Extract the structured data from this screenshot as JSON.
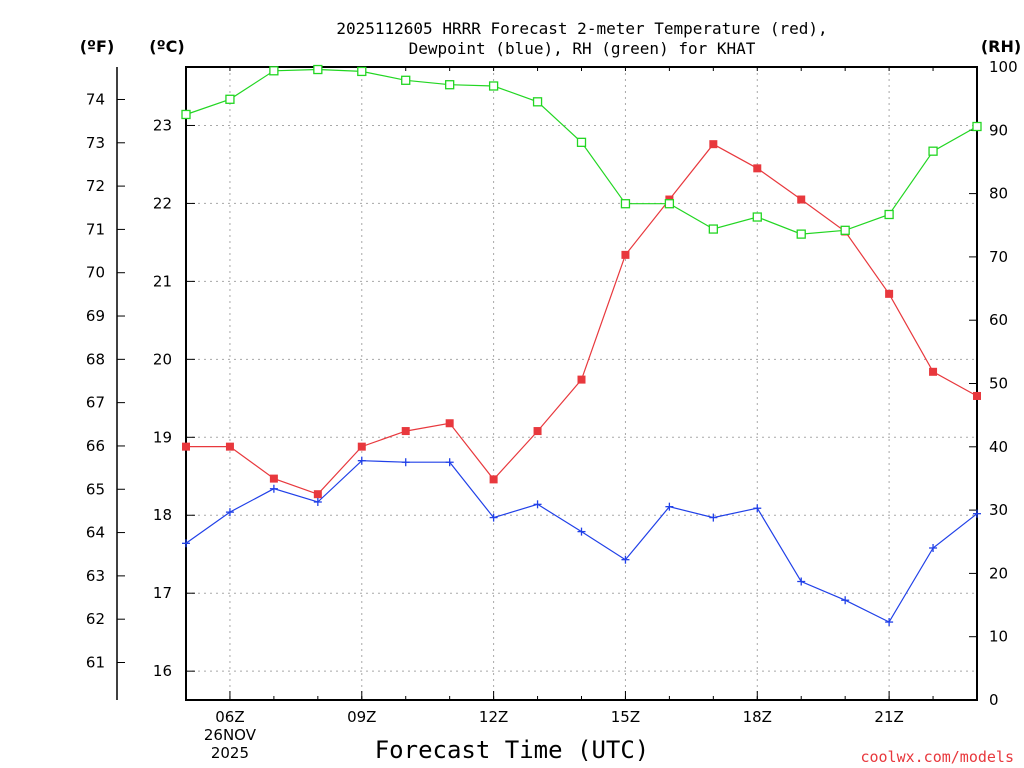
{
  "chart_data": {
    "type": "line",
    "title_lines": [
      "2025112605 HRRR Forecast 2-meter Temperature (red),",
      "Dewpoint (blue), RH (green) for KHAT"
    ],
    "xlabel": "Forecast Time (UTC)",
    "credit": "coolwx.com/models",
    "units": {
      "f": "(ºF)",
      "c": "(ºC)",
      "rh": "(RH)"
    },
    "x_hours": [
      5,
      6,
      7,
      8,
      9,
      10,
      11,
      12,
      13,
      14,
      15,
      16,
      17,
      18,
      19,
      20,
      21,
      22,
      23
    ],
    "xlim": [
      5,
      23
    ],
    "x_ticks": [
      {
        "hour": 6,
        "lines": [
          "06Z",
          "26NOV",
          "2025"
        ]
      },
      {
        "hour": 9,
        "lines": [
          "09Z"
        ]
      },
      {
        "hour": 12,
        "lines": [
          "12Z"
        ]
      },
      {
        "hour": 15,
        "lines": [
          "15Z"
        ]
      },
      {
        "hour": 18,
        "lines": [
          "18Z"
        ]
      },
      {
        "hour": 21,
        "lines": [
          "21Z"
        ]
      }
    ],
    "celsius_axis": {
      "ylim": [
        15.63,
        23.75
      ],
      "ticks": [
        "16",
        "17",
        "18",
        "19",
        "20",
        "21",
        "22",
        "23"
      ]
    },
    "fahrenheit_ticks": [
      "61",
      "62",
      "63",
      "64",
      "65",
      "66",
      "67",
      "68",
      "69",
      "70",
      "71",
      "72",
      "73",
      "74"
    ],
    "rh_axis": {
      "ylim": [
        0,
        100
      ],
      "ticks": [
        "0",
        "10",
        "20",
        "30",
        "40",
        "50",
        "60",
        "70",
        "80",
        "90",
        "100"
      ]
    },
    "series": [
      {
        "name": "2-meter Temperature",
        "axis": "celsius",
        "color": "#e8383d",
        "marker": "filled-square",
        "values": [
          18.88,
          18.88,
          18.47,
          18.27,
          18.88,
          19.08,
          19.18,
          18.46,
          19.08,
          19.74,
          21.34,
          22.05,
          22.76,
          22.45,
          22.05,
          21.64,
          20.84,
          19.84,
          19.53
        ]
      },
      {
        "name": "Dewpoint",
        "axis": "celsius",
        "color": "#2040e8",
        "marker": "plus",
        "values": [
          17.64,
          18.04,
          18.34,
          18.17,
          18.7,
          18.68,
          18.68,
          17.97,
          18.14,
          17.79,
          17.43,
          18.11,
          17.97,
          18.09,
          17.15,
          16.91,
          16.63,
          17.58,
          18.02
        ]
      },
      {
        "name": "RH",
        "axis": "rh",
        "color": "#22d622",
        "marker": "open-square",
        "values": [
          92.5,
          94.9,
          99.4,
          99.6,
          99.3,
          97.9,
          97.2,
          97.0,
          94.5,
          88.1,
          78.4,
          78.4,
          74.4,
          76.3,
          73.6,
          74.2,
          76.7,
          86.7,
          90.6
        ]
      }
    ]
  }
}
